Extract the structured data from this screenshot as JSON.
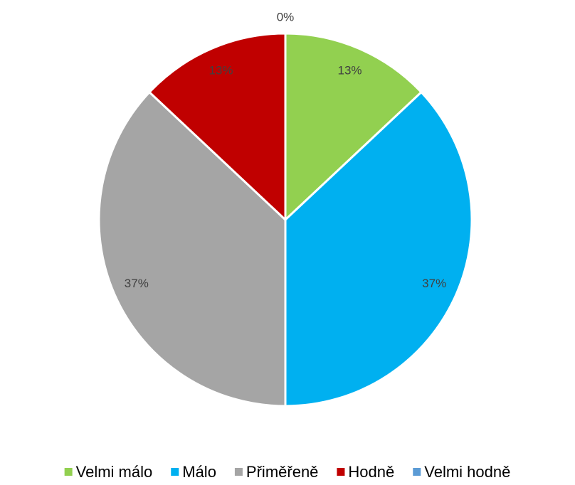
{
  "chart_data": {
    "type": "pie",
    "categories": [
      "Velmi málo",
      "Málo",
      "Přiměřeně",
      "Hodně",
      "Velmi hodně"
    ],
    "values": [
      13,
      37,
      37,
      13,
      0
    ],
    "value_labels": [
      "13%",
      "37%",
      "37%",
      "13%",
      "0%"
    ],
    "colors": [
      "#92d050",
      "#00b0f0",
      "#a5a5a5",
      "#c00000",
      "#5b9bd5"
    ],
    "legend": "bottom"
  }
}
